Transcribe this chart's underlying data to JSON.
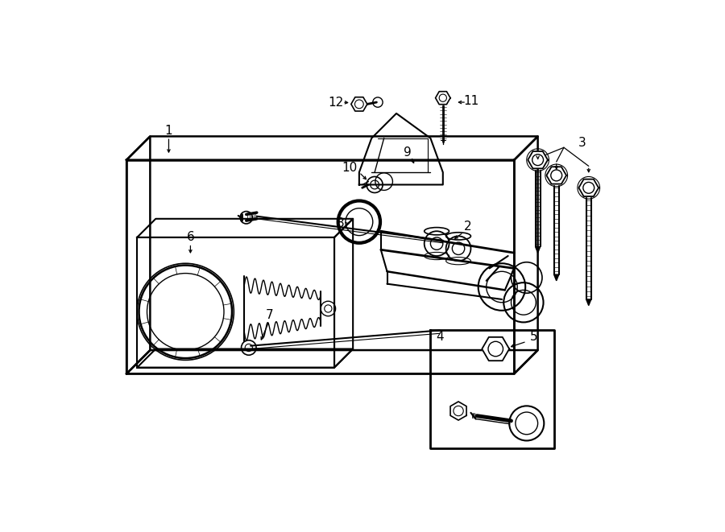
{
  "bg_color": "#ffffff",
  "line_color": "#000000",
  "fig_width": 9.0,
  "fig_height": 6.61,
  "dpi": 100,
  "label_fontsize": 11,
  "small_label_fontsize": 9
}
